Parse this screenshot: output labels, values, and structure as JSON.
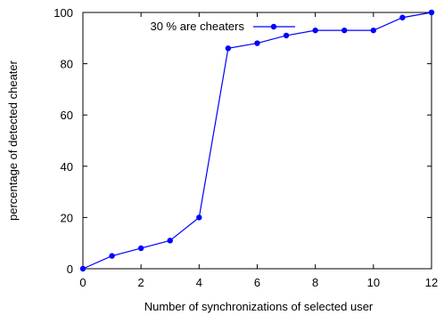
{
  "chart_data": {
    "type": "line",
    "title": "",
    "xlabel": "Number of synchronizations of selected user",
    "ylabel": "percentage of detected cheater",
    "xlim": [
      0,
      12
    ],
    "ylim": [
      0,
      100
    ],
    "xticks": [
      0,
      2,
      4,
      6,
      8,
      10,
      12
    ],
    "yticks": [
      0,
      20,
      40,
      60,
      80,
      100
    ],
    "grid": false,
    "legend_position": "top-right",
    "series": [
      {
        "name": "30 % are cheaters",
        "color": "#0000ff",
        "marker": "filled-circle",
        "x": [
          0,
          1,
          2,
          3,
          4,
          5,
          6,
          7,
          8,
          9,
          10,
          11,
          12
        ],
        "y": [
          0,
          5,
          8,
          11,
          20,
          86,
          88,
          91,
          93,
          93,
          93,
          98,
          100
        ]
      }
    ]
  }
}
